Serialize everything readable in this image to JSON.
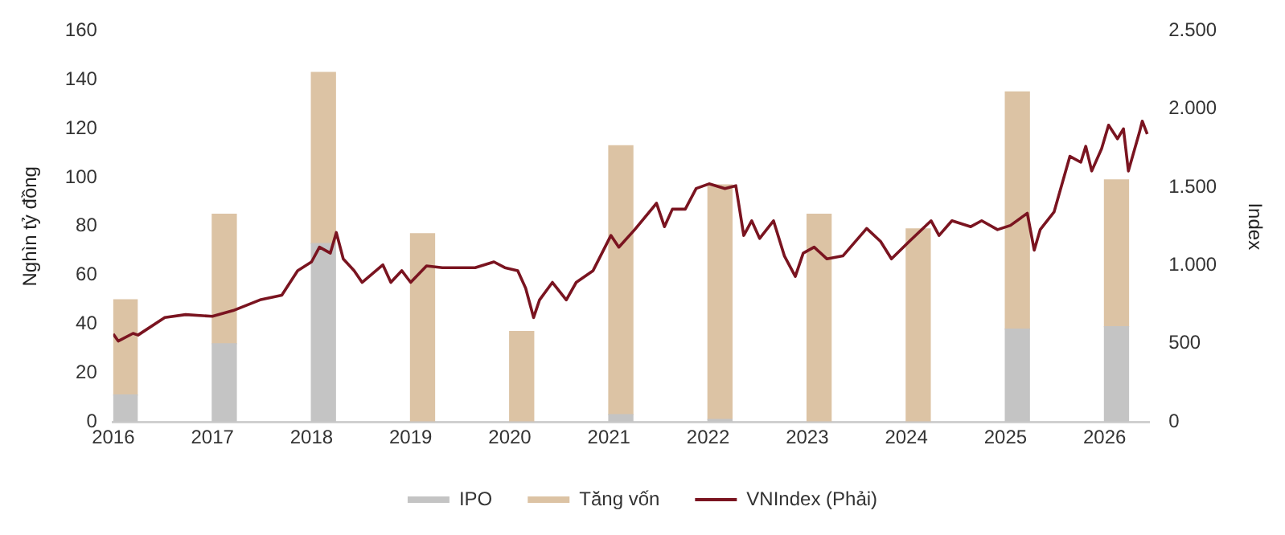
{
  "chart_data": {
    "type": "bar",
    "stacked": true,
    "legend": "bottom",
    "grid": false,
    "xlim": [
      2016,
      2026.45
    ],
    "xticks": [
      2016,
      2017,
      2018,
      2019,
      2020,
      2021,
      2022,
      2023,
      2024,
      2025,
      2026
    ],
    "ylim": [
      0,
      160
    ],
    "yticks": [
      0,
      20,
      40,
      60,
      80,
      100,
      120,
      140,
      160
    ],
    "ylabel": "Nghìn tỷ đồng",
    "y2lim": [
      0,
      2500
    ],
    "y2ticks": [
      0,
      500,
      {
        "value": 1000,
        "label": "1.000"
      },
      {
        "value": 1500,
        "label": "1.500"
      },
      {
        "value": 2000,
        "label": "2.000"
      },
      {
        "value": 2500,
        "label": "2.500"
      }
    ],
    "y2label": "Index",
    "x": [
      2016.12,
      2017.12,
      2018.12,
      2019.12,
      2020.12,
      2021.12,
      2022.12,
      2023.12,
      2024.12,
      2025.12,
      2026.12
    ],
    "series": [
      {
        "name": "IPO",
        "color": "#c4c4c4",
        "values": [
          11,
          32,
          73,
          0,
          0,
          3,
          1,
          0,
          0,
          38,
          39
        ]
      },
      {
        "name": "Tăng vốn",
        "color": "#dcc3a4",
        "values": [
          39,
          53,
          70,
          77,
          37,
          110,
          96,
          85,
          79,
          97,
          60
        ]
      },
      {
        "name": "VNIndex (Phải)",
        "type": "line",
        "axis": "y2",
        "color": "#7a1420",
        "x": [
          2016.0,
          2016.05,
          2016.2,
          2016.25,
          2016.52,
          2016.73,
          2017.0,
          2017.21,
          2017.48,
          2017.7,
          2017.86,
          2018.0,
          2018.08,
          2018.19,
          2018.25,
          2018.32,
          2018.43,
          2018.51,
          2018.72,
          2018.8,
          2018.91,
          2019.0,
          2019.16,
          2019.32,
          2019.65,
          2019.84,
          2019.95,
          2020.08,
          2020.16,
          2020.24,
          2020.3,
          2020.43,
          2020.57,
          2020.67,
          2020.84,
          2021.02,
          2021.1,
          2021.26,
          2021.48,
          2021.56,
          2021.64,
          2021.77,
          2021.88,
          2022.01,
          2022.17,
          2022.28,
          2022.36,
          2022.44,
          2022.52,
          2022.66,
          2022.77,
          2022.88,
          2022.96,
          2023.07,
          2023.2,
          2023.36,
          2023.6,
          2023.74,
          2023.85,
          2024.03,
          2024.25,
          2024.33,
          2024.46,
          2024.65,
          2024.76,
          2024.92,
          2025.05,
          2025.22,
          2025.29,
          2025.35,
          2025.49,
          2025.65,
          2025.76,
          2025.81,
          2025.87,
          2025.97,
          2026.04,
          2026.13,
          2026.19,
          2026.24,
          2026.35,
          2026.38,
          2026.43
        ],
        "values": [
          562,
          517,
          566,
          555,
          667,
          686,
          675,
          712,
          780,
          810,
          967,
          1023,
          1117,
          1079,
          1211,
          1042,
          967,
          892,
          1004,
          892,
          967,
          892,
          997,
          986,
          986,
          1023,
          986,
          967,
          855,
          667,
          780,
          892,
          780,
          892,
          967,
          1192,
          1117,
          1229,
          1398,
          1248,
          1360,
          1360,
          1492,
          1522,
          1492,
          1510,
          1192,
          1286,
          1173,
          1286,
          1061,
          930,
          1079,
          1117,
          1042,
          1061,
          1237,
          1154,
          1042,
          1154,
          1286,
          1192,
          1286,
          1248,
          1286,
          1229,
          1256,
          1334,
          1098,
          1229,
          1342,
          1698,
          1660,
          1762,
          1604,
          1747,
          1897,
          1810,
          1874,
          1604,
          1848,
          1923,
          1840
        ]
      }
    ]
  }
}
